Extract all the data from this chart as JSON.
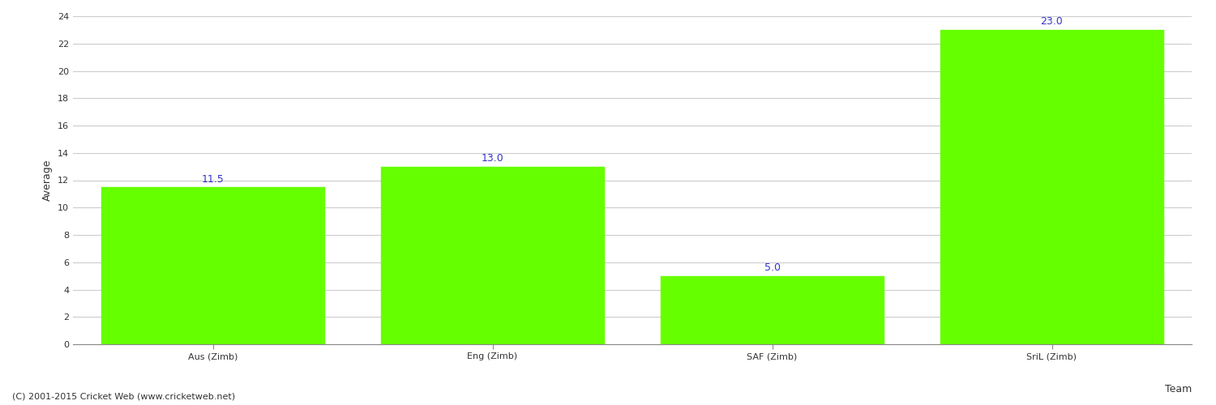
{
  "categories": [
    "Aus (Zimb)",
    "Eng (Zimb)",
    "SAF (Zimb)",
    "SriL (Zimb)"
  ],
  "values": [
    11.5,
    13.0,
    5.0,
    23.0
  ],
  "bar_color": "#66FF00",
  "bar_edge_color": "#66FF00",
  "value_label_color": "#3333CC",
  "value_label_fontsize": 9,
  "xlabel": "Team",
  "ylabel": "Average",
  "ylabel_fontsize": 9,
  "xlabel_fontsize": 9,
  "ylim": [
    0,
    24
  ],
  "yticks": [
    0,
    2,
    4,
    6,
    8,
    10,
    12,
    14,
    16,
    18,
    20,
    22,
    24
  ],
  "grid_color": "#cccccc",
  "background_color": "#ffffff",
  "tick_label_fontsize": 8,
  "axis_label_color": "#555555",
  "footer_text": "(C) 2001-2015 Cricket Web (www.cricketweb.net)",
  "footer_fontsize": 8,
  "footer_color": "#333333",
  "bar_width": 0.8
}
